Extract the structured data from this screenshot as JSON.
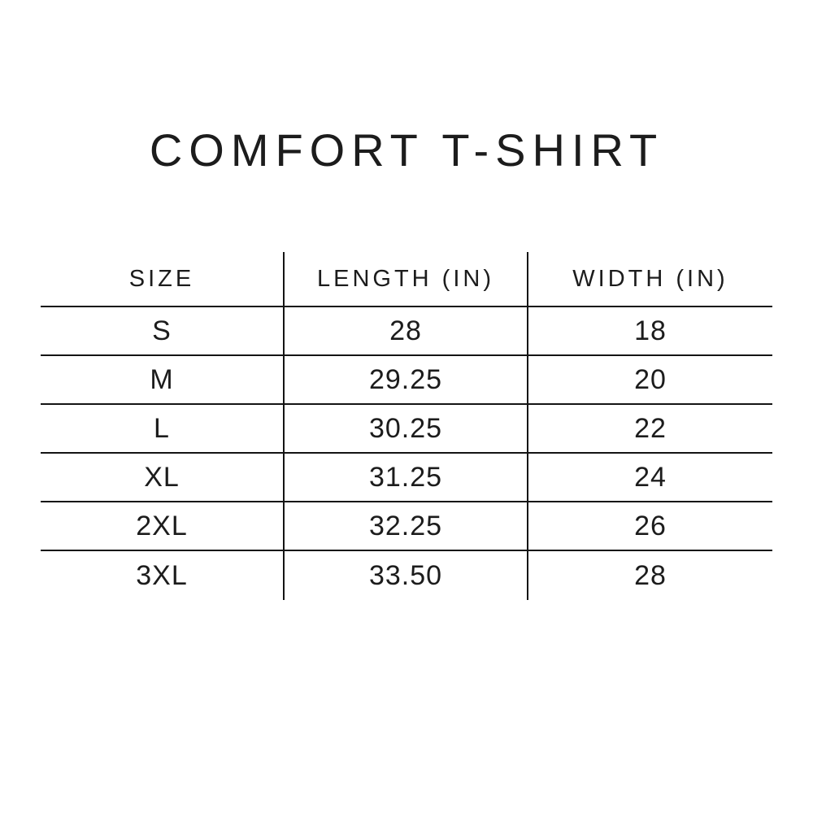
{
  "page": {
    "colors": {
      "background": "#ffffff",
      "text": "#1c1c1c",
      "rule_line": "#141414"
    }
  },
  "chart_data": {
    "type": "table",
    "title": "COMFORT T-SHIRT",
    "columns": [
      "SIZE",
      "LENGTH (IN)",
      "WIDTH (IN)"
    ],
    "rows": [
      [
        "S",
        "28",
        "18"
      ],
      [
        "M",
        "29.25",
        "20"
      ],
      [
        "L",
        "30.25",
        "22"
      ],
      [
        "XL",
        "31.25",
        "24"
      ],
      [
        "2XL",
        "32.25",
        "26"
      ],
      [
        "3XL",
        "33.50",
        "28"
      ]
    ],
    "layout_hints": {
      "grid": "horizontal rules between rows, vertical rules between columns only; no outer top/bottom border",
      "alignment": "all cells centered"
    }
  }
}
